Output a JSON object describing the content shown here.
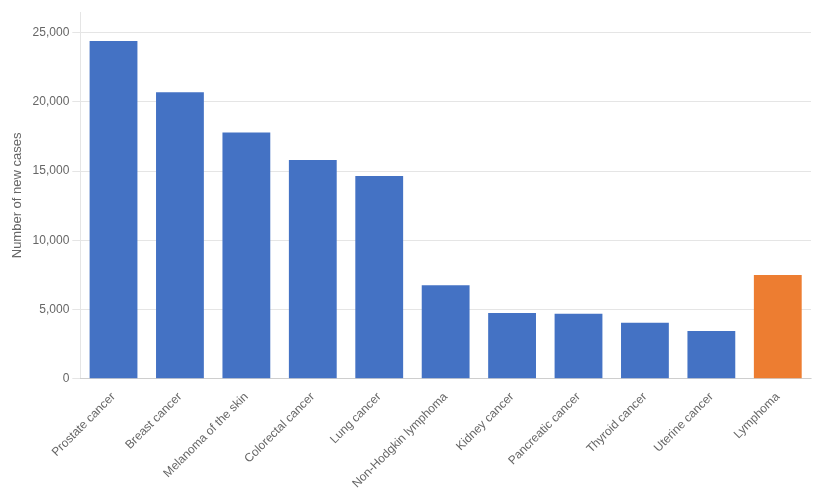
{
  "chart_data": {
    "type": "bar",
    "categories": [
      "Prostate cancer",
      "Breast cancer",
      "Melanoma of the skin",
      "Colorectal cancer",
      "Lung cancer",
      "Non-Hodgkin lymphoma",
      "Kidney cancer",
      "Pancreatic cancer",
      "Thyroid cancer",
      "Uterine cancer",
      "Lymphoma"
    ],
    "values": [
      24400,
      20700,
      17800,
      15800,
      14650,
      6750,
      4750,
      4700,
      4050,
      3450,
      7500
    ],
    "colors": [
      "#4472C4",
      "#4472C4",
      "#4472C4",
      "#4472C4",
      "#4472C4",
      "#4472C4",
      "#4472C4",
      "#4472C4",
      "#4472C4",
      "#4472C4",
      "#ED7D31"
    ],
    "ylabel": "Number of new cases",
    "ylim": [
      0,
      26500
    ],
    "yticks": [
      0,
      {
        "value": 5000,
        "label": "5,000"
      },
      {
        "value": 10000,
        "label": "10,000"
      },
      {
        "value": 15000,
        "label": "15,000"
      },
      {
        "value": 20000,
        "label": "20,000"
      },
      {
        "value": 25000,
        "label": "25,000"
      }
    ],
    "grid": true
  }
}
